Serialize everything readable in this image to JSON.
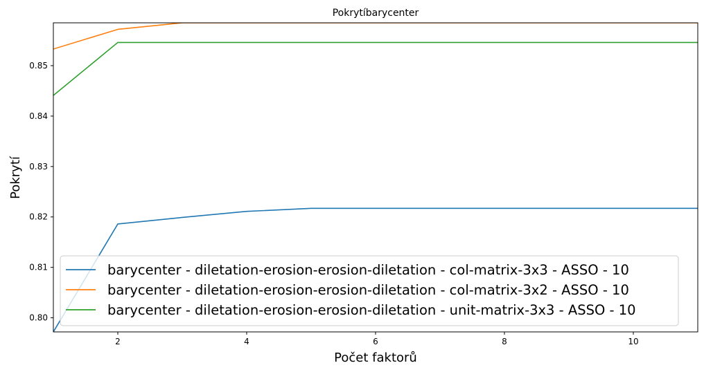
{
  "chart_data": {
    "type": "line",
    "title": "Pokrytíbarycenter",
    "xlabel": "Počet faktorů",
    "ylabel": "Pokrytí",
    "xlim": [
      1,
      11
    ],
    "ylim": [
      0.7972,
      0.8585
    ],
    "xticks": [
      2,
      4,
      6,
      8,
      10
    ],
    "yticks": [
      0.8,
      0.81,
      0.82,
      0.83,
      0.84,
      0.85
    ],
    "ytick_labels": [
      "0.80",
      "0.81",
      "0.82",
      "0.83",
      "0.84",
      "0.85"
    ],
    "grid": false,
    "legend_position": "lower-left",
    "x": [
      1,
      2,
      3,
      4,
      5,
      6,
      7,
      8,
      9,
      10,
      11
    ],
    "series": [
      {
        "name": "barycenter - diletation-erosion-erosion-diletation - col-matrix-3x3 - ASSO - 10",
        "color": "#1f77b4",
        "values": [
          0.7972,
          0.8186,
          0.8199,
          0.8211,
          0.8217,
          0.8217,
          0.8217,
          0.8217,
          0.8217,
          0.8217,
          0.8217
        ]
      },
      {
        "name": "barycenter - diletation-erosion-erosion-diletation - col-matrix-3x2 - ASSO - 10",
        "color": "#ff7f0e",
        "values": [
          0.8533,
          0.8572,
          0.8585,
          0.8585,
          0.8585,
          0.8585,
          0.8585,
          0.8585,
          0.8585,
          0.8585,
          0.8585
        ]
      },
      {
        "name": "barycenter - diletation-erosion-erosion-diletation - unit-matrix-3x3 - ASSO - 10",
        "color": "#2ca02c",
        "values": [
          0.8441,
          0.8546,
          0.8546,
          0.8546,
          0.8546,
          0.8546,
          0.8546,
          0.8546,
          0.8546,
          0.8546,
          0.8546
        ]
      }
    ]
  }
}
